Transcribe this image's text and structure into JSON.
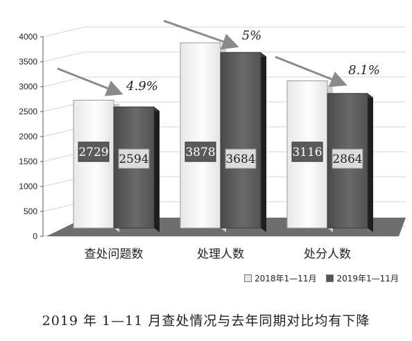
{
  "chart_data": {
    "type": "bar",
    "categories": [
      "查处问题数",
      "处理人数",
      "处分人数"
    ],
    "series": [
      {
        "name": "2018年1—11月",
        "values": [
          2729,
          3878,
          3116
        ]
      },
      {
        "name": "2019年1—11月",
        "values": [
          2594,
          3684,
          2864
        ]
      }
    ],
    "data_labels": [
      [
        "2729",
        "3878",
        "3116"
      ],
      [
        "2594",
        "3684",
        "2864"
      ]
    ],
    "annotations": [
      "4.9%",
      "5%",
      "8.1%"
    ],
    "ylim": [
      0,
      4000
    ],
    "yticks": [
      "0",
      "500",
      "1000",
      "1500",
      "2000",
      "2500",
      "3000",
      "3500",
      "4000"
    ],
    "grid": true,
    "legend_position": "bottom-right",
    "colors": {
      "series_2018": "#f2f2f2",
      "series_2019": "#585858",
      "label_2018_box": "#dcdcdc",
      "label_2019_box": "#5a5a5a",
      "floor": "#6e6e6e",
      "arrow": "#8a8a8a"
    }
  },
  "caption": "2019 年 1—11 月查处情况与去年同期对比均有下降"
}
